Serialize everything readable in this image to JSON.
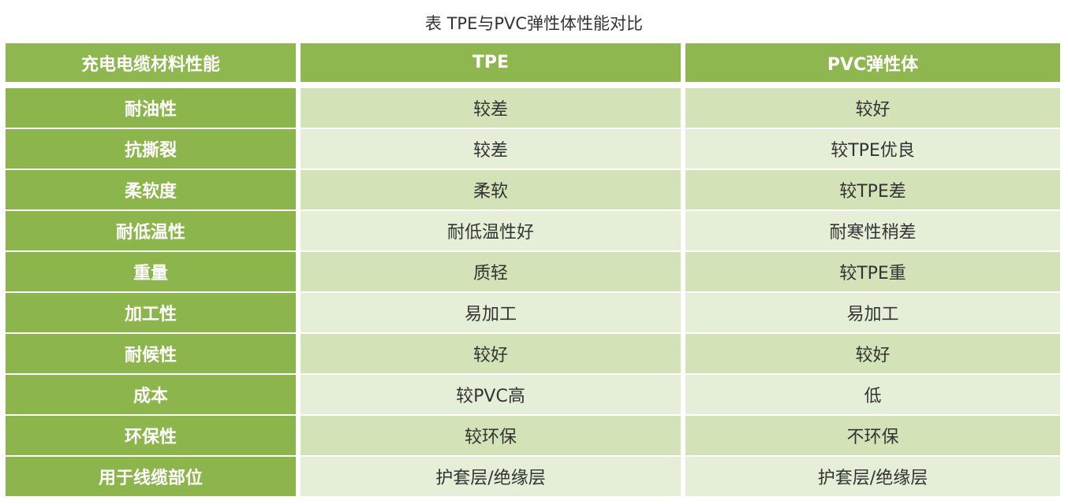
{
  "title": "表  TPE与PVC弹性体性能对比",
  "colors": {
    "header_green": "#8fb74f",
    "row_odd": "#d3e3b7",
    "row_even": "#e5efd8"
  },
  "headers": [
    "充电电缆材料性能",
    "TPE",
    "PVC弹性体"
  ],
  "rows": [
    [
      "耐油性",
      "较差",
      "较好"
    ],
    [
      "抗撕裂",
      "较差",
      "较TPE优良"
    ],
    [
      "柔软度",
      "柔软",
      "较TPE差"
    ],
    [
      "耐低温性",
      "耐低温性好",
      "耐寒性稍差"
    ],
    [
      "重量",
      "质轻",
      "较TPE重"
    ],
    [
      "加工性",
      "易加工",
      "易加工"
    ],
    [
      "耐候性",
      "较好",
      "较好"
    ],
    [
      "成本",
      "较PVC高",
      "低"
    ],
    [
      "环保性",
      "较环保",
      "不环保"
    ],
    [
      "用于线缆部位",
      "护套层/绝缘层",
      "护套层/绝缘层"
    ]
  ]
}
